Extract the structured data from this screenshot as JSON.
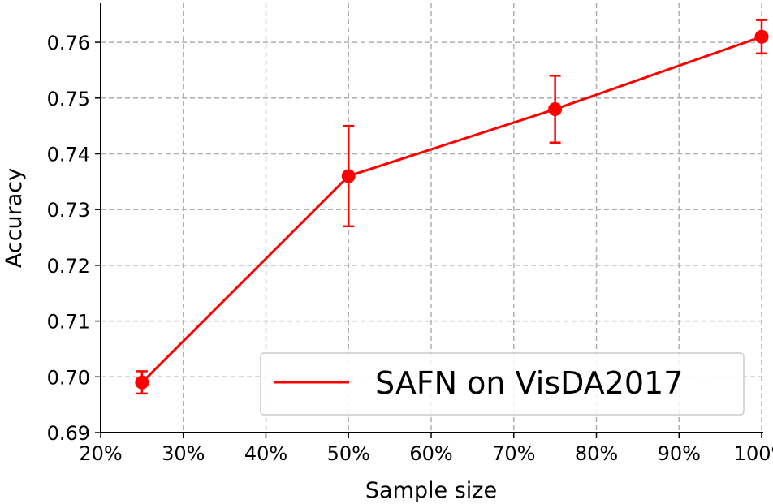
{
  "chart_data": {
    "type": "line",
    "xlabel": "Sample size",
    "ylabel": "Accuracy",
    "xlim": [
      20,
      100
    ],
    "ylim": [
      0.69,
      0.767
    ],
    "xticks": [
      20,
      30,
      40,
      50,
      60,
      70,
      80,
      90,
      100
    ],
    "xtick_labels": [
      "20%",
      "30%",
      "40%",
      "50%",
      "60%",
      "70%",
      "80%",
      "90%",
      "100%"
    ],
    "yticks": [
      0.69,
      0.7,
      0.71,
      0.72,
      0.73,
      0.74,
      0.75,
      0.76
    ],
    "ytick_labels": [
      "0.69",
      "0.70",
      "0.71",
      "0.72",
      "0.73",
      "0.74",
      "0.75",
      "0.76"
    ],
    "grid": true,
    "legend": "bottom-right",
    "series": [
      {
        "name": "SAFN on VisDA2017",
        "color": "#ff0000",
        "x": [
          25,
          50,
          75,
          100
        ],
        "y": [
          0.699,
          0.736,
          0.748,
          0.761
        ],
        "yerr_low": [
          0.697,
          0.727,
          0.742,
          0.758
        ],
        "yerr_high": [
          0.701,
          0.745,
          0.754,
          0.764
        ]
      }
    ]
  }
}
